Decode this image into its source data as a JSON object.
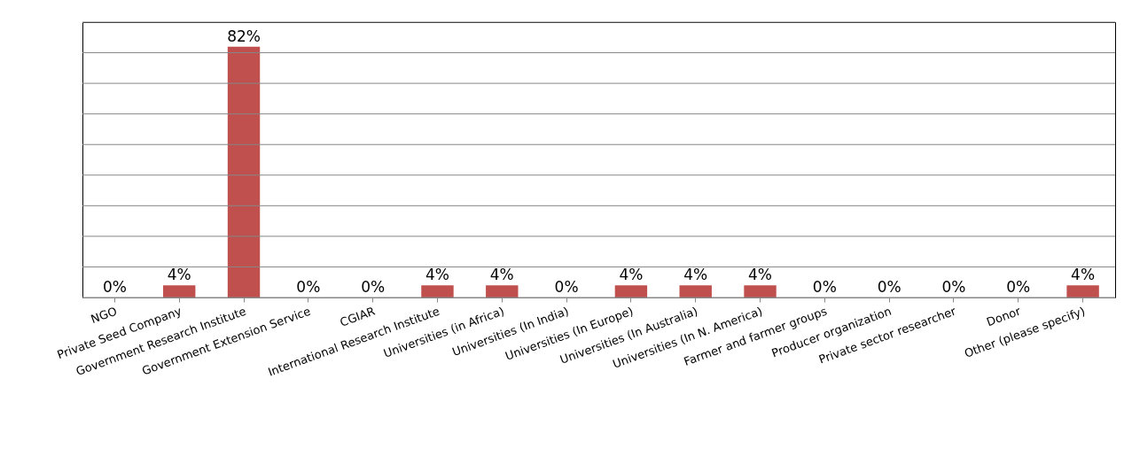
{
  "chart_data": {
    "type": "bar",
    "categories": [
      "NGO",
      "Private Seed Company",
      "Government Research Institute",
      "Government Extension Service",
      "CGIAR",
      "International Research Institute",
      "Universities (in Africa)",
      "Universities (In India)",
      "Universities (In Europe)",
      "Universities (In Australia)",
      "Universities (In N. America)",
      "Farmer and farmer groups",
      "Producer organization",
      "Private sector researcher",
      "Donor",
      "Other (please specify)"
    ],
    "values": [
      0,
      4,
      82,
      0,
      0,
      4,
      4,
      0,
      4,
      4,
      4,
      0,
      0,
      0,
      0,
      4
    ],
    "value_labels": [
      "0%",
      "4%",
      "82%",
      "0%",
      "0%",
      "4%",
      "4%",
      "0%",
      "4%",
      "4%",
      "4%",
      "0%",
      "0%",
      "0%",
      "0%",
      "4%"
    ],
    "color": "#c0504d",
    "ylim": [
      0,
      90
    ],
    "yticks": [
      0,
      10,
      20,
      30,
      40,
      50,
      60,
      70,
      80,
      90
    ],
    "grid": "y",
    "tick_labels": "x"
  }
}
